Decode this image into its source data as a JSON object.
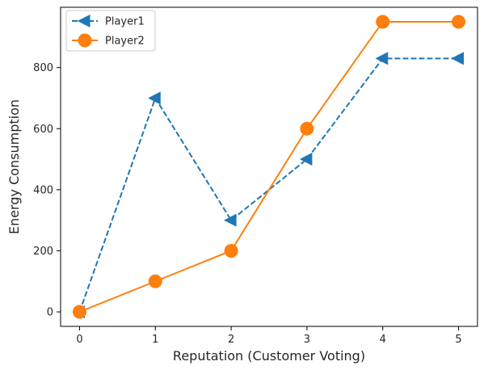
{
  "chart_data": {
    "type": "line",
    "xlabel": "Reputation (Customer Voting)",
    "ylabel": "Energy Consumption",
    "x": [
      0,
      1,
      2,
      3,
      4,
      5
    ],
    "xlim": [
      -0.25,
      5.25
    ],
    "ylim": [
      -47.5,
      997.5
    ],
    "xticks": [
      "0",
      "1",
      "2",
      "3",
      "4",
      "5"
    ],
    "yticks": [
      "0",
      "200",
      "400",
      "600",
      "800"
    ],
    "grid": false,
    "legend_position": "top-left",
    "series": [
      {
        "name": "Player1",
        "values": [
          0,
          700,
          300,
          500,
          830,
          830
        ],
        "color": "#1f77b4",
        "line_style": "dashed",
        "marker": "left-triangle"
      },
      {
        "name": "Player2",
        "values": [
          0,
          100,
          200,
          600,
          950,
          950
        ],
        "color": "#ff7f0e",
        "line_style": "solid",
        "marker": "circle"
      }
    ]
  }
}
